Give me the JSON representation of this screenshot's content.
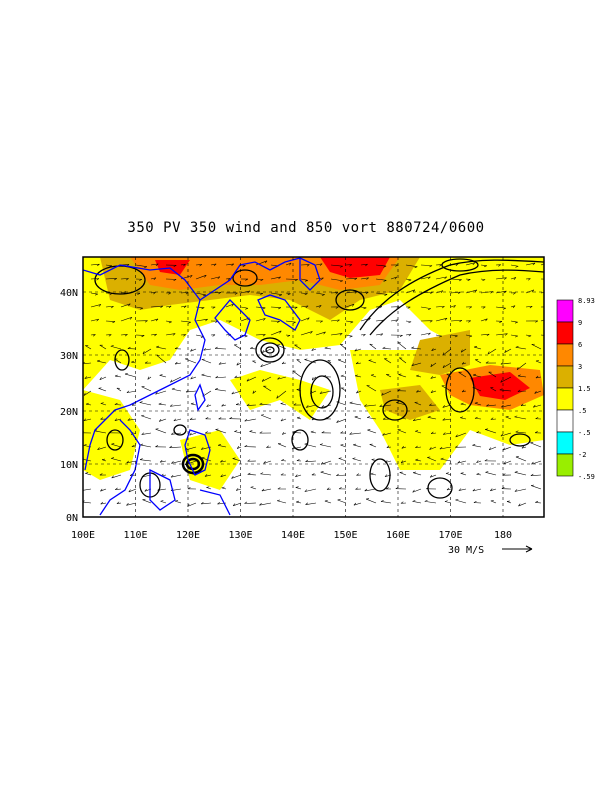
{
  "title": "350 PV 350 wind and 850 vort 880724/0600",
  "axes": {
    "lon_ticks": [
      "100E",
      "110E",
      "120E",
      "130E",
      "140E",
      "150E",
      "160E",
      "170E",
      "180"
    ],
    "lat_ticks": [
      "0N",
      "10N",
      "20N",
      "30N",
      "40N"
    ]
  },
  "vector_reference": {
    "label": "30 M/S"
  },
  "colorbar": [
    {
      "label": "8.93",
      "color": "#ff00ff"
    },
    {
      "label": "9",
      "color": "#ff0000"
    },
    {
      "label": "6",
      "color": "#ff8800"
    },
    {
      "label": "3",
      "color": "#dbb000"
    },
    {
      "label": "1.5",
      "color": "#ffff00"
    },
    {
      "label": ".5",
      "color": "#ffffff"
    },
    {
      "label": "-.5",
      "color": "#00ffff"
    },
    {
      "label": "-2",
      "color": "#99ee00"
    },
    {
      "label": "-.59",
      "color": "#99ee00"
    }
  ],
  "colors": {
    "coast": "#0000ff",
    "contour": "#000000",
    "pv_low": "#ffff00",
    "pv_mid": "#dbb000",
    "pv_high": "#ff8800",
    "pv_max": "#ff0000"
  }
}
